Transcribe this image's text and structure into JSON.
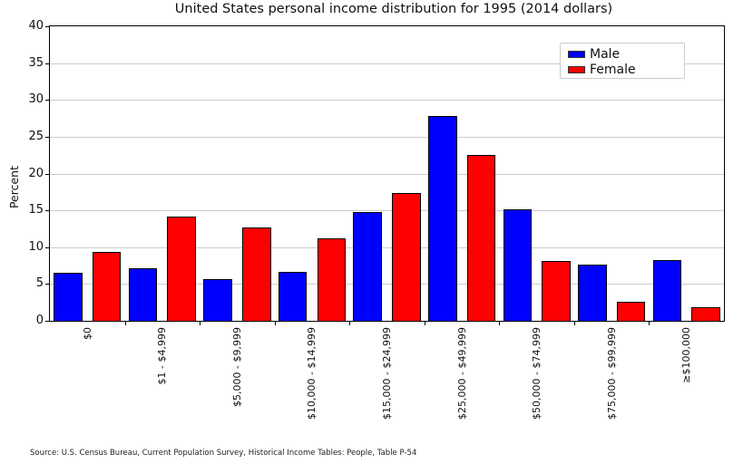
{
  "chart_data": {
    "type": "bar",
    "title": "United States personal income distribution for 1995 (2014 dollars)",
    "xlabel": "",
    "ylabel": "Percent",
    "ylim": [
      0,
      40
    ],
    "ytick_step": 5,
    "grid": true,
    "legend_position": "upper right",
    "categories": [
      "$0",
      "$1 - $4,999",
      "$5,000 - $9,999",
      "$10,000 - $14,999",
      "$15,000 - $24,999",
      "$25,000 - $49,999",
      "$50,000 - $74,999",
      "$75,000 - $99,999",
      "≥$100,000"
    ],
    "series": [
      {
        "name": "Male",
        "color": "#0000ff",
        "values": [
          6.5,
          7.1,
          5.7,
          6.6,
          14.8,
          27.8,
          15.1,
          7.6,
          8.3
        ]
      },
      {
        "name": "Female",
        "color": "#ff0000",
        "values": [
          9.4,
          14.1,
          12.7,
          11.2,
          17.3,
          22.5,
          8.1,
          2.6,
          1.8
        ]
      }
    ],
    "source": "Source: U.S. Census Bureau, Current Population Survey, Historical Income Tables: People, Table P-54"
  },
  "colors": {
    "background": "#ffffff",
    "grid": "#cccccc",
    "spine": "#000000",
    "bar_edge": "#000000",
    "legend_border": "#cccccc",
    "text": "#111111"
  }
}
